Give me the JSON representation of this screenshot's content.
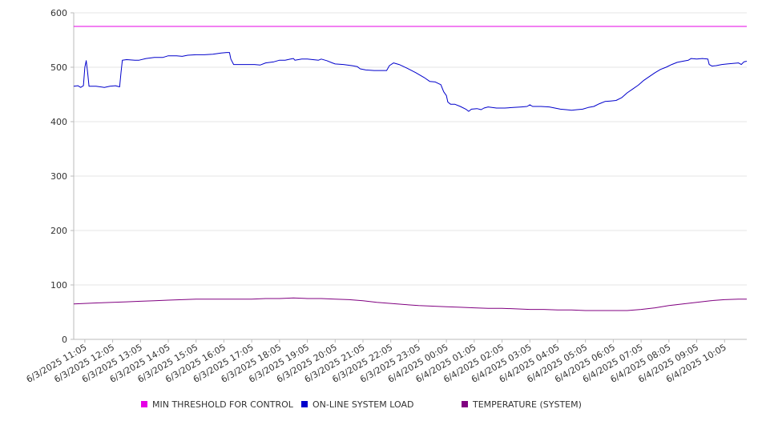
{
  "chart_data": {
    "type": "line",
    "title": "",
    "xlabel": "",
    "ylabel": "",
    "ylim": [
      0,
      600
    ],
    "yticks": [
      0,
      100,
      200,
      300,
      400,
      500,
      600
    ],
    "x_tick_labels": [
      "6/3/2025 11:05",
      "6/3/2025 12:05",
      "6/3/2025 13:05",
      "6/3/2025 14:05",
      "6/3/2025 15:05",
      "6/3/2025 16:05",
      "6/3/2025 17:05",
      "6/3/2025 18:05",
      "6/3/2025 19:05",
      "6/3/2025 20:05",
      "6/3/2025 21:05",
      "6/3/2025 22:05",
      "6/3/2025 23:05",
      "6/4/2025 00:05",
      "6/4/2025 01:05",
      "6/4/2025 02:05",
      "6/4/2025 03:05",
      "6/4/2025 04:05",
      "6/4/2025 05:05",
      "6/4/2025 06:05",
      "6/4/2025 07:05",
      "6/4/2025 08:05",
      "6/4/2025 09:05",
      "6/4/2025 10:05"
    ],
    "x_hours": {
      "range": [
        10.6,
        34.8
      ],
      "tick_positions": [
        11,
        12,
        13,
        14,
        15,
        16,
        17,
        18,
        19,
        20,
        21,
        22,
        23,
        24,
        25,
        26,
        27,
        28,
        29,
        30,
        31,
        32,
        33,
        34
      ]
    },
    "grid": "horizontal",
    "legend_position": "bottom",
    "series": [
      {
        "name": "MIN THRESHOLD FOR CONTROL",
        "color": "#e600e6",
        "points": [
          [
            10.6,
            575
          ],
          [
            34.8,
            575
          ]
        ]
      },
      {
        "name": "ON-LINE SYSTEM LOAD",
        "color": "#0000cc",
        "points": [
          [
            10.6,
            465
          ],
          [
            10.75,
            466
          ],
          [
            10.85,
            463
          ],
          [
            10.95,
            466
          ],
          [
            11.0,
            500
          ],
          [
            11.05,
            512
          ],
          [
            11.1,
            490
          ],
          [
            11.15,
            465
          ],
          [
            11.4,
            465
          ],
          [
            11.7,
            463
          ],
          [
            11.9,
            465
          ],
          [
            12.1,
            466
          ],
          [
            12.25,
            464
          ],
          [
            12.3,
            490
          ],
          [
            12.35,
            513
          ],
          [
            12.5,
            514
          ],
          [
            12.8,
            513
          ],
          [
            12.95,
            513
          ],
          [
            13.2,
            516
          ],
          [
            13.5,
            518
          ],
          [
            13.8,
            518
          ],
          [
            14.0,
            521
          ],
          [
            14.3,
            521
          ],
          [
            14.5,
            520
          ],
          [
            14.7,
            522
          ],
          [
            15.0,
            523
          ],
          [
            15.3,
            523
          ],
          [
            15.6,
            524
          ],
          [
            15.9,
            526
          ],
          [
            16.1,
            527
          ],
          [
            16.2,
            527
          ],
          [
            16.25,
            515
          ],
          [
            16.35,
            505
          ],
          [
            16.5,
            505
          ],
          [
            16.8,
            505
          ],
          [
            17.1,
            505
          ],
          [
            17.3,
            504
          ],
          [
            17.5,
            508
          ],
          [
            17.8,
            510
          ],
          [
            18.0,
            513
          ],
          [
            18.2,
            513
          ],
          [
            18.4,
            515
          ],
          [
            18.5,
            516
          ],
          [
            18.55,
            513
          ],
          [
            18.8,
            515
          ],
          [
            19.0,
            515
          ],
          [
            19.2,
            514
          ],
          [
            19.4,
            513
          ],
          [
            19.5,
            515
          ],
          [
            19.7,
            512
          ],
          [
            19.9,
            508
          ],
          [
            20.0,
            506
          ],
          [
            20.3,
            505
          ],
          [
            20.6,
            503
          ],
          [
            20.8,
            501
          ],
          [
            20.9,
            497
          ],
          [
            21.1,
            495
          ],
          [
            21.4,
            494
          ],
          [
            21.6,
            494
          ],
          [
            21.85,
            494
          ],
          [
            21.95,
            503
          ],
          [
            22.1,
            508
          ],
          [
            22.3,
            505
          ],
          [
            22.6,
            498
          ],
          [
            22.9,
            490
          ],
          [
            23.2,
            481
          ],
          [
            23.4,
            474
          ],
          [
            23.6,
            473
          ],
          [
            23.8,
            468
          ],
          [
            23.9,
            455
          ],
          [
            24.0,
            448
          ],
          [
            24.05,
            436
          ],
          [
            24.15,
            432
          ],
          [
            24.3,
            432
          ],
          [
            24.5,
            428
          ],
          [
            24.7,
            423
          ],
          [
            24.8,
            419
          ],
          [
            24.9,
            423
          ],
          [
            25.1,
            424
          ],
          [
            25.25,
            422
          ],
          [
            25.35,
            425
          ],
          [
            25.5,
            427
          ],
          [
            25.8,
            425
          ],
          [
            26.1,
            425
          ],
          [
            26.4,
            426
          ],
          [
            26.7,
            427
          ],
          [
            26.9,
            428
          ],
          [
            27.0,
            431
          ],
          [
            27.1,
            428
          ],
          [
            27.4,
            428
          ],
          [
            27.7,
            427
          ],
          [
            27.9,
            425
          ],
          [
            28.1,
            423
          ],
          [
            28.3,
            422
          ],
          [
            28.5,
            421
          ],
          [
            28.7,
            422
          ],
          [
            28.9,
            423
          ],
          [
            29.1,
            426
          ],
          [
            29.3,
            428
          ],
          [
            29.5,
            433
          ],
          [
            29.7,
            437
          ],
          [
            29.9,
            438
          ],
          [
            30.1,
            439
          ],
          [
            30.3,
            444
          ],
          [
            30.5,
            453
          ],
          [
            30.7,
            460
          ],
          [
            30.9,
            467
          ],
          [
            31.1,
            476
          ],
          [
            31.3,
            483
          ],
          [
            31.5,
            490
          ],
          [
            31.7,
            496
          ],
          [
            31.9,
            500
          ],
          [
            32.1,
            505
          ],
          [
            32.3,
            509
          ],
          [
            32.5,
            511
          ],
          [
            32.7,
            513
          ],
          [
            32.8,
            516
          ],
          [
            33.0,
            515
          ],
          [
            33.2,
            516
          ],
          [
            33.4,
            515
          ],
          [
            33.45,
            505
          ],
          [
            33.55,
            502
          ],
          [
            33.7,
            503
          ],
          [
            33.9,
            505
          ],
          [
            34.1,
            506
          ],
          [
            34.3,
            507
          ],
          [
            34.5,
            508
          ],
          [
            34.6,
            505
          ],
          [
            34.7,
            510
          ],
          [
            34.8,
            511
          ]
        ]
      },
      {
        "name": "TEMPERATURE (SYSTEM)",
        "color": "#800080",
        "points": [
          [
            10.6,
            65
          ],
          [
            11.0,
            66
          ],
          [
            11.5,
            67
          ],
          [
            12.0,
            68
          ],
          [
            12.5,
            69
          ],
          [
            13.0,
            70
          ],
          [
            13.5,
            71
          ],
          [
            14.0,
            72
          ],
          [
            14.5,
            73
          ],
          [
            15.0,
            74
          ],
          [
            16.0,
            74
          ],
          [
            17.0,
            74
          ],
          [
            17.5,
            75
          ],
          [
            18.0,
            75
          ],
          [
            18.5,
            76
          ],
          [
            19.0,
            75
          ],
          [
            19.5,
            75
          ],
          [
            20.0,
            74
          ],
          [
            20.5,
            73
          ],
          [
            21.0,
            71
          ],
          [
            21.5,
            68
          ],
          [
            22.0,
            66
          ],
          [
            22.5,
            64
          ],
          [
            23.0,
            62
          ],
          [
            23.5,
            61
          ],
          [
            24.0,
            60
          ],
          [
            24.5,
            59
          ],
          [
            25.0,
            58
          ],
          [
            25.5,
            57
          ],
          [
            26.0,
            57
          ],
          [
            26.5,
            56
          ],
          [
            27.0,
            55
          ],
          [
            27.5,
            55
          ],
          [
            28.0,
            54
          ],
          [
            28.5,
            54
          ],
          [
            29.0,
            53
          ],
          [
            29.5,
            53
          ],
          [
            30.0,
            53
          ],
          [
            30.5,
            53
          ],
          [
            31.0,
            55
          ],
          [
            31.5,
            58
          ],
          [
            32.0,
            62
          ],
          [
            32.5,
            65
          ],
          [
            33.0,
            68
          ],
          [
            33.5,
            71
          ],
          [
            34.0,
            73
          ],
          [
            34.5,
            74
          ],
          [
            34.8,
            74
          ]
        ]
      }
    ]
  }
}
